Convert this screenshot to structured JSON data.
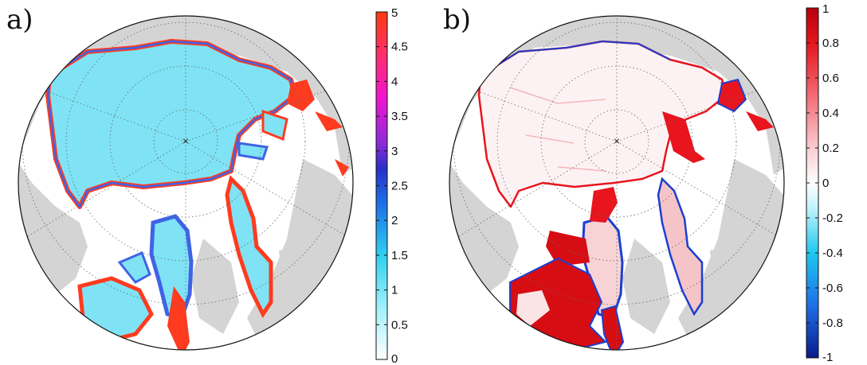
{
  "panels": [
    {
      "label": "a)",
      "colorbar": {
        "min": 0,
        "max": 5,
        "ticks": [
          "0",
          "0.5",
          "1",
          "1.5",
          "2",
          "2.5",
          "3",
          "3.5",
          "4",
          "4.5",
          "5"
        ]
      }
    },
    {
      "label": "b)",
      "colorbar": {
        "min": -1,
        "max": 1,
        "ticks": [
          "-1",
          "-0.8",
          "-0.6",
          "-0.4",
          "-0.2",
          "0",
          "0.2",
          "0.4",
          "0.6",
          "0.8",
          "1"
        ]
      }
    }
  ],
  "colors": {
    "land": "#d4d4d4",
    "ocean": "#ffffff",
    "ice_a": "#7fe3f5",
    "edge_high": "#ff3b1f",
    "edge_mid": "#3f63e6",
    "pos_b": "#e8141e",
    "neg_b": "#1a3fd1"
  }
}
